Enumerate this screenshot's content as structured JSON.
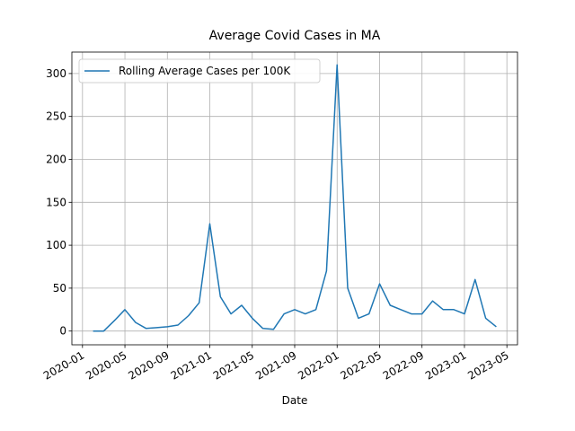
{
  "chart_data": {
    "type": "line",
    "title": "Average Covid Cases in MA",
    "x_label": "Date",
    "x": [
      "2020-02",
      "2020-03",
      "2020-04",
      "2020-05",
      "2020-06",
      "2020-07",
      "2020-08",
      "2020-09",
      "2020-10",
      "2020-11",
      "2020-12",
      "2021-01",
      "2021-02",
      "2021-03",
      "2021-04",
      "2021-05",
      "2021-06",
      "2021-07",
      "2021-08",
      "2021-09",
      "2021-10",
      "2021-11",
      "2021-12",
      "2022-01",
      "2022-02",
      "2022-03",
      "2022-04",
      "2022-05",
      "2022-06",
      "2022-07",
      "2022-08",
      "2022-09",
      "2022-10",
      "2022-11",
      "2022-12",
      "2023-01",
      "2023-02",
      "2023-03",
      "2023-04"
    ],
    "series": [
      {
        "name": "Rolling Average Cases per 100K",
        "color": "#1f77b4",
        "values": [
          0,
          0,
          12,
          25,
          10,
          3,
          4,
          5,
          7,
          18,
          33,
          125,
          40,
          20,
          30,
          15,
          3,
          2,
          20,
          25,
          20,
          25,
          70,
          310,
          50,
          15,
          20,
          55,
          30,
          25,
          20,
          20,
          35,
          25,
          25,
          20,
          60,
          15,
          5
        ]
      }
    ],
    "xlim": [
      "2019-12",
      "2023-06"
    ],
    "xticks": [
      "2020-01",
      "2020-05",
      "2020-09",
      "2021-01",
      "2021-05",
      "2021-09",
      "2022-01",
      "2022-05",
      "2022-09",
      "2023-01",
      "2023-05"
    ],
    "ylim": [
      -16,
      325
    ],
    "yticks": [
      0,
      50,
      100,
      150,
      200,
      250,
      300
    ],
    "grid": true,
    "legend": "upper left"
  }
}
